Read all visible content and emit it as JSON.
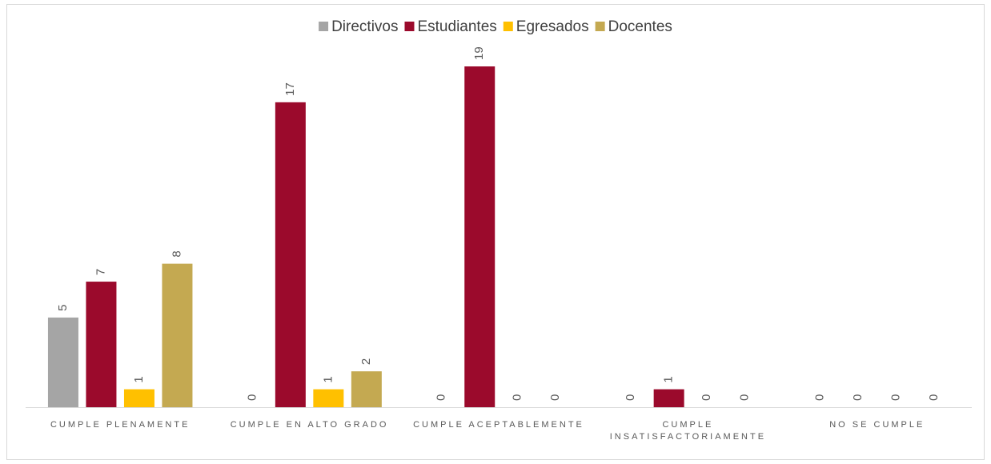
{
  "chart_data": {
    "type": "bar",
    "categories": [
      "CUMPLE PLENAMENTE",
      "CUMPLE EN ALTO GRADO",
      "CUMPLE ACEPTABLEMENTE",
      "CUMPLE INSATISFACTORIAMENTE",
      "NO SE CUMPLE"
    ],
    "series": [
      {
        "name": "Directivos",
        "color": "#a5a5a5",
        "values": [
          5,
          0,
          0,
          0,
          0
        ]
      },
      {
        "name": "Estudiantes",
        "color": "#9b0a2c",
        "values": [
          7,
          17,
          19,
          1,
          0
        ]
      },
      {
        "name": "Egresados",
        "color": "#ffc000",
        "values": [
          1,
          1,
          0,
          0,
          0
        ]
      },
      {
        "name": "Docentes",
        "color": "#c4a951",
        "values": [
          8,
          2,
          0,
          0,
          0
        ]
      }
    ],
    "legend": "top"
  }
}
